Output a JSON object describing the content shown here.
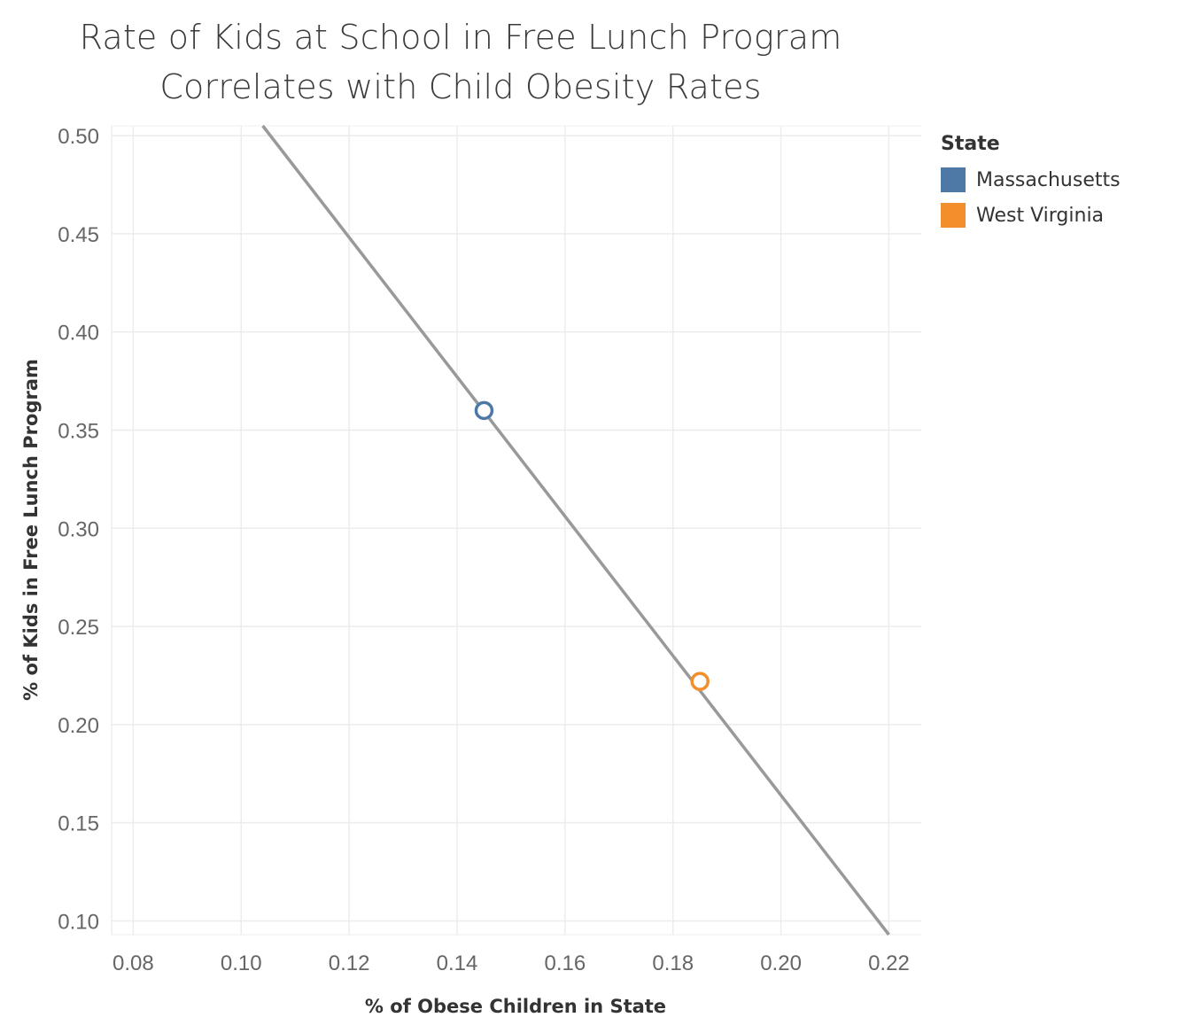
{
  "chart_data": {
    "type": "scatter",
    "title_lines": [
      "Rate of Kids at School in Free Lunch Program",
      "Correlates with  Child Obesity Rates"
    ],
    "xlabel": "% of Obese Children in State",
    "ylabel": "% of Kids in Free Lunch Program",
    "xlim": [
      0.076,
      0.226
    ],
    "ylim": [
      0.093,
      0.505
    ],
    "x_ticks": [
      "0.08",
      "0.10",
      "0.12",
      "0.14",
      "0.16",
      "0.18",
      "0.20",
      "0.22"
    ],
    "y_ticks": [
      "0.50",
      "0.45",
      "0.40",
      "0.35",
      "0.30",
      "0.25",
      "0.20",
      "0.15",
      "0.10"
    ],
    "grid": true,
    "legend": {
      "title": "State",
      "position": "top-right",
      "items": [
        {
          "label": "Massachusetts",
          "color": "#4e79a7"
        },
        {
          "label": "West Virginia",
          "color": "#f28e2b"
        }
      ]
    },
    "series": [
      {
        "name": "Massachusetts",
        "x": 0.145,
        "y": 0.36,
        "color": "#4e79a7"
      },
      {
        "name": "West Virginia",
        "x": 0.185,
        "y": 0.222,
        "color": "#f28e2b"
      }
    ],
    "trend_line": {
      "color": "#999999",
      "start": [
        0.104,
        0.51
      ],
      "end": [
        0.22,
        0.093
      ]
    }
  }
}
